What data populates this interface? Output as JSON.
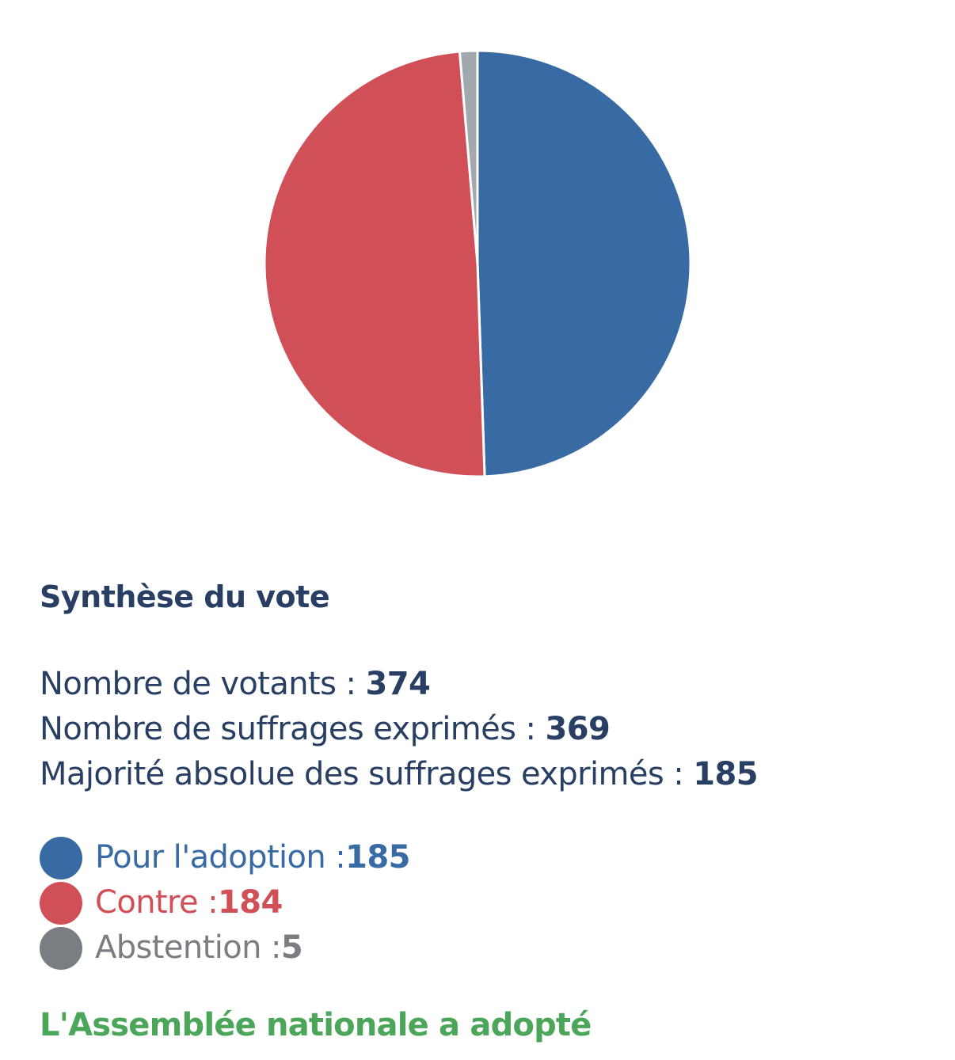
{
  "chart_data": {
    "type": "pie",
    "slices": [
      {
        "label": "Pour l'adoption",
        "value": 185,
        "color": "#386BA3"
      },
      {
        "label": "Contre",
        "value": 184,
        "color": "#D14F57"
      },
      {
        "label": "Abstention",
        "value": 5,
        "color": "#A2A8AD"
      }
    ],
    "start": "top",
    "direction": "clockwise"
  },
  "summary": {
    "title": "Synthèse du vote",
    "stats": [
      {
        "label": "Nombre de votants : ",
        "value": "374"
      },
      {
        "label": "Nombre de suffrages exprimés : ",
        "value": "369"
      },
      {
        "label": "Majorité absolue des suffrages exprimés : ",
        "value": "185"
      }
    ]
  },
  "legend": [
    {
      "label": "Pour l'adoption : ",
      "value": "185",
      "color": "#386BA3"
    },
    {
      "label": "Contre : ",
      "value": "184",
      "color": "#D14F57"
    },
    {
      "label": "Abstention : ",
      "value": "5",
      "color": "#7A7E83"
    }
  ],
  "result": "L'Assemblée nationale a adopté"
}
